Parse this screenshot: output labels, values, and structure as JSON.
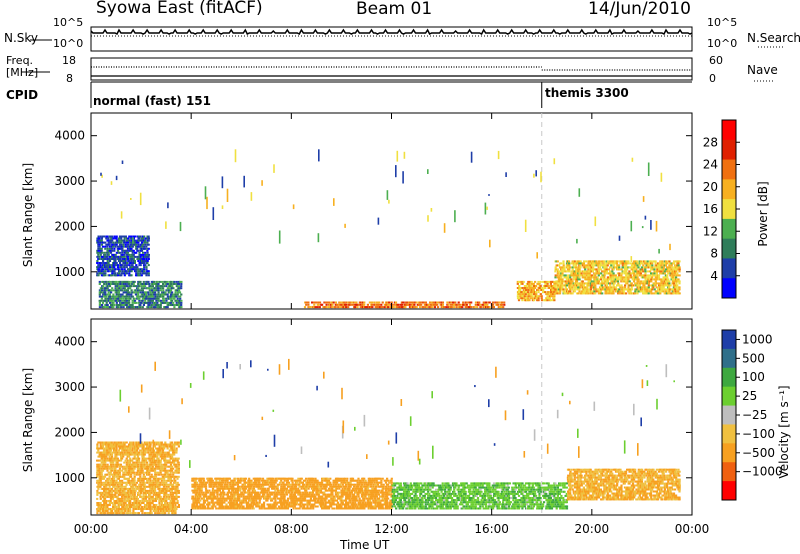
{
  "header": {
    "station": "Syowa East (fitACF)",
    "beam": "Beam 01",
    "date": "14/Jun/2010"
  },
  "top_panels": {
    "nsky": {
      "label": "N.Sky",
      "y_max": "10^5",
      "y_min": "10^0"
    },
    "nsearch": {
      "label": "N.Search",
      "y_max": "10^5",
      "y_min": "10^0"
    },
    "freq": {
      "label_line1": "Freq.",
      "label_line2": "[MHz]",
      "y_max": "18",
      "y_min": "8"
    },
    "nave": {
      "label": "Nave",
      "y_max": "60",
      "y_min": "0"
    },
    "cpid": {
      "label": "CPID",
      "segments": [
        {
          "text": "normal (fast) 151",
          "start_hour": 0
        },
        {
          "text": "themis 3300",
          "start_hour": 18
        }
      ]
    }
  },
  "colors": {
    "power_scale": [
      "#0000ff",
      "#1e3ea8",
      "#2f7d5a",
      "#4caf50",
      "#f0e040",
      "#f7b020",
      "#f07010",
      "#e02000",
      "#ff0000"
    ],
    "velocity_scale": [
      "#ff0000",
      "#f06010",
      "#f7a020",
      "#f0c040",
      "#bebebe",
      "#6ccf30",
      "#3ea840",
      "#2f6f8a",
      "#1e3ea8"
    ],
    "ground_scatter": "#bebebe"
  },
  "chart_data": [
    {
      "type": "heatmap",
      "panel": "power",
      "ylabel": "Slant Range [km]",
      "ylim": [
        180,
        4500
      ],
      "yticks": [
        "1000",
        "2000",
        "3000",
        "4000"
      ],
      "xlim": [
        0,
        24
      ],
      "colorbar_label": "Power [dB]",
      "colorbar_ticks": [
        "4",
        "8",
        "12",
        "16",
        "20",
        "24",
        "28"
      ],
      "colorbar_range": [
        0,
        32
      ],
      "features": [
        {
          "x_start": 0.2,
          "x_end": 2.3,
          "y_low": 900,
          "y_high": 1800,
          "value": 6
        },
        {
          "x_start": 0.3,
          "x_end": 3.6,
          "y_low": 200,
          "y_high": 800,
          "value": 10
        },
        {
          "x_start": 8.5,
          "x_end": 16.5,
          "y_low": 200,
          "y_high": 350,
          "value": 26
        },
        {
          "x_start": 17.0,
          "x_end": 18.5,
          "y_low": 350,
          "y_high": 800,
          "value": 22
        },
        {
          "x_start": 18.5,
          "x_end": 23.5,
          "y_low": 500,
          "y_high": 1250,
          "value": 20
        }
      ]
    },
    {
      "type": "heatmap",
      "panel": "velocity",
      "ylabel": "Slant Range [km]",
      "ylim": [
        180,
        4500
      ],
      "yticks": [
        "1000",
        "2000",
        "3000",
        "4000"
      ],
      "xlim": [
        0,
        24
      ],
      "xticks": [
        "00:00",
        "04:00",
        "08:00",
        "12:00",
        "16:00",
        "20:00",
        "00:00"
      ],
      "xlabel": "Time UT",
      "colorbar_label": "Velocity [m s⁻¹]",
      "colorbar_ticks": [
        "1000",
        "500",
        "100",
        "25",
        "−25",
        "−100",
        "−500",
        "−1000"
      ],
      "features": [
        {
          "x_start": 0.2,
          "x_end": 3.5,
          "y_low": 200,
          "y_high": 1800,
          "value": -100
        },
        {
          "x_start": 4.0,
          "x_end": 12.0,
          "y_low": 300,
          "y_high": 1000,
          "value": -150
        },
        {
          "x_start": 12.0,
          "x_end": 19.0,
          "y_low": 300,
          "y_high": 900,
          "value": 80
        },
        {
          "x_start": 19.0,
          "x_end": 23.5,
          "y_low": 500,
          "y_high": 1200,
          "value": -100
        }
      ]
    }
  ]
}
